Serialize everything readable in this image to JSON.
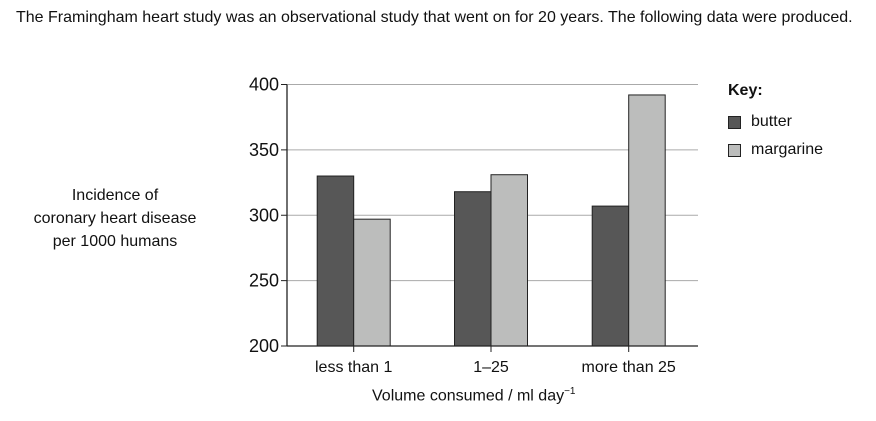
{
  "intro_text": "The Framingham heart study was an observational study that went on for 20 years.  The following data were produced.",
  "chart_data": {
    "type": "bar",
    "categories": [
      "less than 1",
      "1–25",
      "more than 25"
    ],
    "series": [
      {
        "name": "butter",
        "values": [
          330,
          318,
          307
        ],
        "color": "#575757"
      },
      {
        "name": "margarine",
        "values": [
          297,
          331,
          392
        ],
        "color": "#bcbdbc"
      }
    ],
    "ylabel": "Incidence of coronary heart disease per 1000 humans",
    "ylabel_lines": [
      "Incidence of",
      "coronary heart disease",
      "per 1000 humans"
    ],
    "xlabel": "Volume consumed / ml day",
    "xlabel_sup": "−1",
    "ylim": [
      200,
      400
    ],
    "yticks": [
      200,
      250,
      300,
      350,
      400
    ],
    "grid": true,
    "legend_title": "Key:",
    "legend_position": "right"
  }
}
